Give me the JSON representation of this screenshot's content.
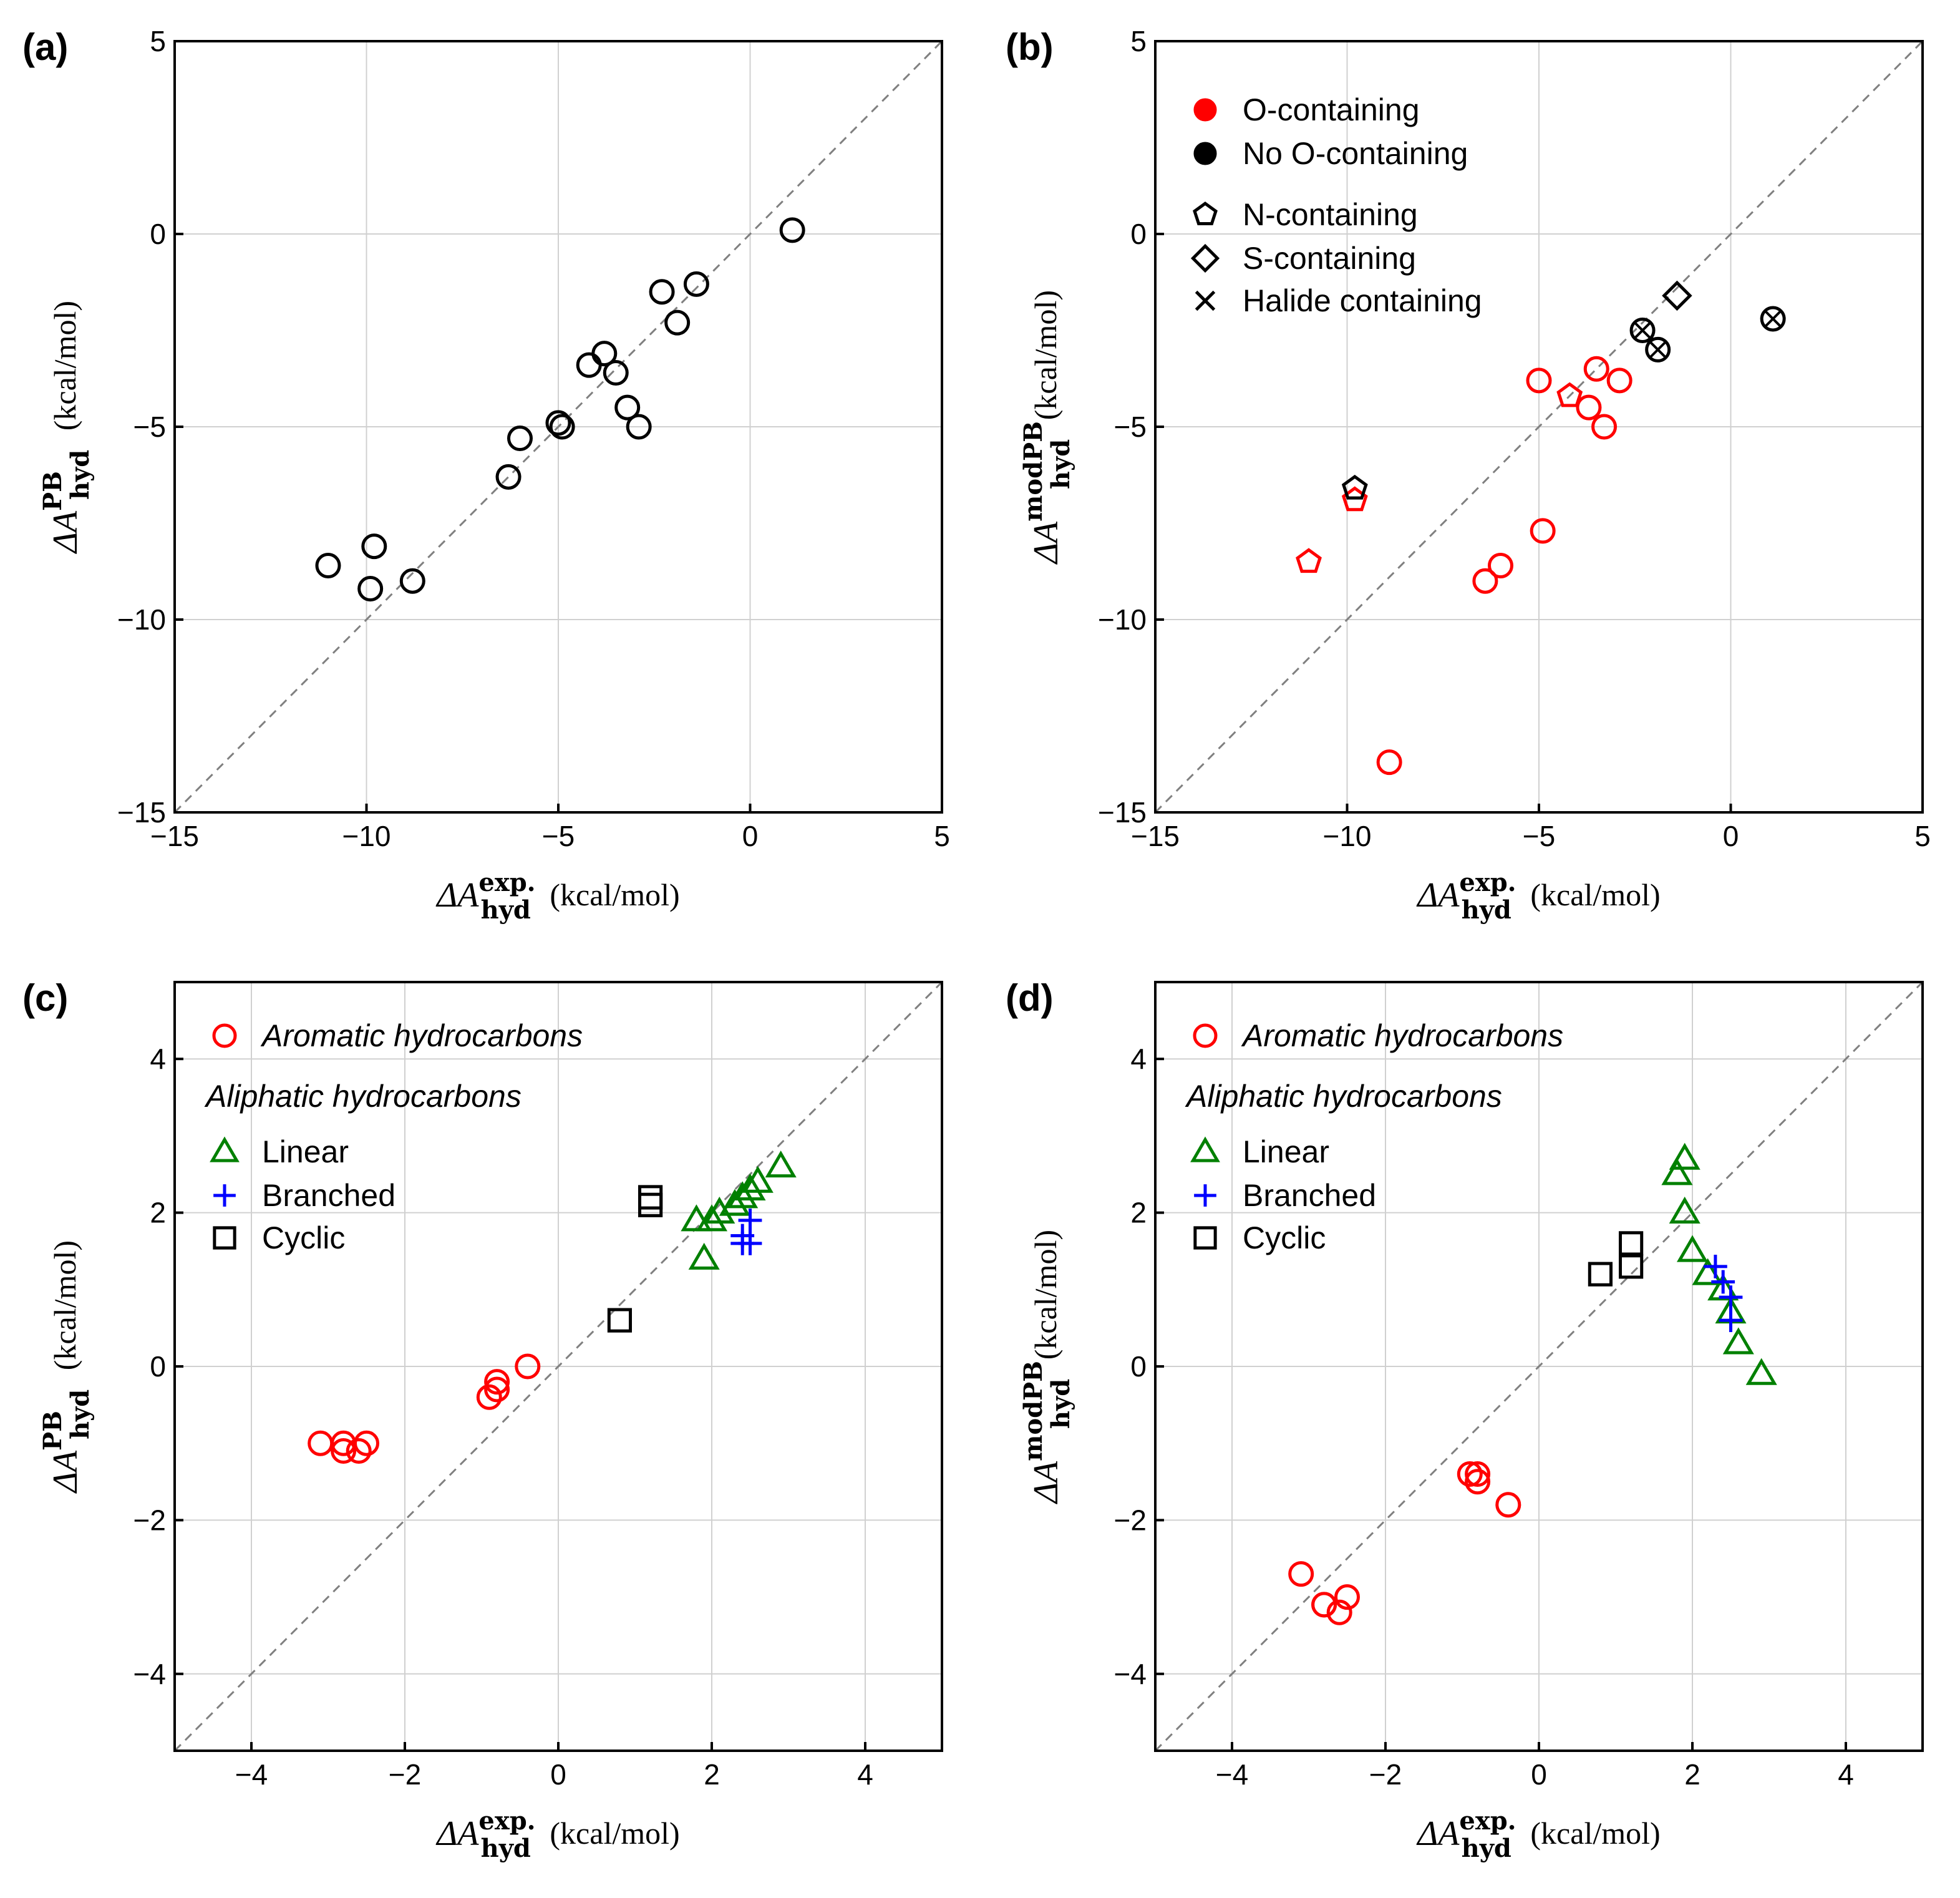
{
  "colors": {
    "red": "#ff0000",
    "black": "#000000",
    "green": "#008000",
    "blue": "#0000ff",
    "grid": "#d0d0d0",
    "diag": "#808080"
  },
  "chart_data": [
    {
      "id": "a",
      "type": "scatter",
      "panel_label": "(a)",
      "xlabel": {
        "sym": "ΔA",
        "sup": "exp.",
        "sub": "hyd",
        "unit": "(kcal/mol)"
      },
      "ylabel": {
        "sym": "ΔA",
        "sup": "PB",
        "sub": "hyd",
        "unit": "(kcal/mol)"
      },
      "xlim": [
        -15,
        5
      ],
      "ylim": [
        -15,
        5
      ],
      "xticks": [
        -15,
        -10,
        -5,
        0,
        5
      ],
      "yticks": [
        -15,
        -10,
        -5,
        0,
        5
      ],
      "grid": true,
      "diagonal": true,
      "legend": [],
      "series": [
        {
          "name": "all",
          "marker": "circle",
          "color": "#000000",
          "points": [
            [
              1.1,
              0.1
            ],
            [
              -1.4,
              -1.3
            ],
            [
              -2.3,
              -1.5
            ],
            [
              -1.9,
              -2.3
            ],
            [
              -3.8,
              -3.1
            ],
            [
              -4.2,
              -3.4
            ],
            [
              -3.5,
              -3.6
            ],
            [
              -3.2,
              -4.5
            ],
            [
              -2.9,
              -5.0
            ],
            [
              -5.0,
              -4.9
            ],
            [
              -4.9,
              -5.0
            ],
            [
              -6.0,
              -5.3
            ],
            [
              -6.3,
              -6.3
            ],
            [
              -9.8,
              -8.1
            ],
            [
              -11.0,
              -8.6
            ],
            [
              -9.9,
              -9.2
            ],
            [
              -8.8,
              -9.0
            ]
          ]
        }
      ]
    },
    {
      "id": "b",
      "type": "scatter",
      "panel_label": "(b)",
      "xlabel": {
        "sym": "ΔA",
        "sup": "exp.",
        "sub": "hyd",
        "unit": "(kcal/mol)"
      },
      "ylabel": {
        "sym": "ΔA",
        "sup": "modPB",
        "sub": "hyd",
        "unit": "(kcal/mol)"
      },
      "xlim": [
        -15,
        5
      ],
      "ylim": [
        -15,
        5
      ],
      "xticks": [
        -15,
        -10,
        -5,
        0,
        5
      ],
      "yticks": [
        -15,
        -10,
        -5,
        0,
        5
      ],
      "grid": true,
      "diagonal": true,
      "legend": [
        {
          "label": "O-containing",
          "marker": "filled-circle",
          "color": "#ff0000"
        },
        {
          "label": "No O-containing",
          "marker": "filled-circle",
          "color": "#000000"
        },
        {
          "label": "N-containing",
          "marker": "pentagon",
          "color": "#000000"
        },
        {
          "label": "S-containing",
          "marker": "diamond",
          "color": "#000000"
        },
        {
          "label": "Halide containing",
          "marker": "cross",
          "color": "#000000"
        }
      ],
      "series": [
        {
          "name": "O-containing",
          "marker": "circle",
          "color": "#ff0000",
          "points": [
            [
              -5.0,
              -3.8
            ],
            [
              -3.5,
              -3.5
            ],
            [
              -2.9,
              -3.8
            ],
            [
              -3.7,
              -4.5
            ],
            [
              -3.3,
              -5.0
            ],
            [
              -4.9,
              -7.7
            ],
            [
              -6.0,
              -8.6
            ],
            [
              -6.4,
              -9.0
            ],
            [
              -8.9,
              -13.7
            ]
          ]
        },
        {
          "name": "O + N-containing",
          "marker": "pentagon",
          "color": "#ff0000",
          "points": [
            [
              -4.2,
              -4.2
            ],
            [
              -9.8,
              -6.9
            ],
            [
              -11.0,
              -8.5
            ]
          ]
        },
        {
          "name": "N-containing",
          "marker": "pentagon",
          "color": "#000000",
          "points": [
            [
              -9.8,
              -6.6
            ]
          ]
        },
        {
          "name": "S-containing",
          "marker": "diamond",
          "color": "#000000",
          "points": [
            [
              -1.4,
              -1.6
            ]
          ]
        },
        {
          "name": "Halide containing",
          "marker": "circle-cross",
          "color": "#000000",
          "points": [
            [
              -2.3,
              -2.5
            ],
            [
              -1.9,
              -3.0
            ],
            [
              1.1,
              -2.2
            ]
          ]
        }
      ]
    },
    {
      "id": "c",
      "type": "scatter",
      "panel_label": "(c)",
      "xlabel": {
        "sym": "ΔA",
        "sup": "exp.",
        "sub": "hyd",
        "unit": "(kcal/mol)"
      },
      "ylabel": {
        "sym": "ΔA",
        "sup": "PB",
        "sub": "hyd",
        "unit": "(kcal/mol)"
      },
      "xlim": [
        -5,
        5
      ],
      "ylim": [
        -5,
        5
      ],
      "xticks": [
        -4,
        -2,
        0,
        2,
        4
      ],
      "yticks": [
        -4,
        -2,
        0,
        2,
        4
      ],
      "grid": true,
      "diagonal": true,
      "legend_title": "Aliphatic hydrocarbons",
      "legend": [
        {
          "label": "Aromatic hydrocarbons",
          "marker": "circle",
          "color": "#ff0000",
          "italic": true
        },
        {
          "label": "Linear",
          "marker": "triangle",
          "color": "#008000"
        },
        {
          "label": "Branched",
          "marker": "plus",
          "color": "#0000ff"
        },
        {
          "label": "Cyclic",
          "marker": "square",
          "color": "#000000"
        }
      ],
      "series": [
        {
          "name": "Aromatic hydrocarbons",
          "marker": "circle",
          "color": "#ff0000",
          "points": [
            [
              -3.1,
              -1.0
            ],
            [
              -2.8,
              -1.0
            ],
            [
              -2.8,
              -1.1
            ],
            [
              -2.6,
              -1.1
            ],
            [
              -2.5,
              -1.0
            ],
            [
              -0.9,
              -0.4
            ],
            [
              -0.8,
              -0.3
            ],
            [
              -0.8,
              -0.2
            ],
            [
              -0.4,
              0.0
            ]
          ]
        },
        {
          "name": "Linear",
          "marker": "triangle",
          "color": "#008000",
          "points": [
            [
              1.8,
              1.9
            ],
            [
              2.0,
              1.9
            ],
            [
              2.1,
              2.0
            ],
            [
              2.3,
              2.1
            ],
            [
              2.4,
              2.2
            ],
            [
              2.5,
              2.3
            ],
            [
              2.6,
              2.4
            ],
            [
              2.9,
              2.6
            ],
            [
              1.9,
              1.4
            ]
          ]
        },
        {
          "name": "Branched",
          "marker": "plus",
          "color": "#0000ff",
          "points": [
            [
              2.4,
              1.7
            ],
            [
              2.5,
              1.9
            ],
            [
              2.4,
              1.6
            ],
            [
              2.5,
              1.6
            ]
          ]
        },
        {
          "name": "Cyclic",
          "marker": "square",
          "color": "#000000",
          "points": [
            [
              1.2,
              2.1
            ],
            [
              1.2,
              2.2
            ],
            [
              0.8,
              0.6
            ]
          ]
        }
      ]
    },
    {
      "id": "d",
      "type": "scatter",
      "panel_label": "(d)",
      "xlabel": {
        "sym": "ΔA",
        "sup": "exp.",
        "sub": "hyd",
        "unit": "(kcal/mol)"
      },
      "ylabel": {
        "sym": "ΔA",
        "sup": "modPB",
        "sub": "hyd",
        "unit": "(kcal/mol)"
      },
      "xlim": [
        -5,
        5
      ],
      "ylim": [
        -5,
        5
      ],
      "xticks": [
        -4,
        -2,
        0,
        2,
        4
      ],
      "yticks": [
        -4,
        -2,
        0,
        2,
        4
      ],
      "grid": true,
      "diagonal": true,
      "legend_title": "Aliphatic hydrocarbons",
      "legend": [
        {
          "label": "Aromatic hydrocarbons",
          "marker": "circle",
          "color": "#ff0000",
          "italic": true
        },
        {
          "label": "Linear",
          "marker": "triangle",
          "color": "#008000"
        },
        {
          "label": "Branched",
          "marker": "plus",
          "color": "#0000ff"
        },
        {
          "label": "Cyclic",
          "marker": "square",
          "color": "#000000"
        }
      ],
      "series": [
        {
          "name": "Aromatic hydrocarbons",
          "marker": "circle",
          "color": "#ff0000",
          "points": [
            [
              -3.1,
              -2.7
            ],
            [
              -2.8,
              -3.1
            ],
            [
              -2.6,
              -3.2
            ],
            [
              -2.5,
              -3.0
            ],
            [
              -2.8,
              -3.1
            ],
            [
              -0.9,
              -1.4
            ],
            [
              -0.8,
              -1.4
            ],
            [
              -0.8,
              -1.5
            ],
            [
              -0.4,
              -1.8
            ]
          ]
        },
        {
          "name": "Linear",
          "marker": "triangle",
          "color": "#008000",
          "points": [
            [
              1.9,
              2.7
            ],
            [
              1.8,
              2.5
            ],
            [
              1.9,
              2.0
            ],
            [
              2.0,
              1.5
            ],
            [
              2.2,
              1.2
            ],
            [
              2.4,
              1.0
            ],
            [
              2.5,
              0.7
            ],
            [
              2.6,
              0.3
            ],
            [
              2.9,
              -0.1
            ]
          ]
        },
        {
          "name": "Branched",
          "marker": "plus",
          "color": "#0000ff",
          "points": [
            [
              2.3,
              1.3
            ],
            [
              2.4,
              1.1
            ],
            [
              2.5,
              0.9
            ],
            [
              2.5,
              0.6
            ]
          ]
        },
        {
          "name": "Cyclic",
          "marker": "square",
          "color": "#000000",
          "points": [
            [
              1.2,
              1.6
            ],
            [
              1.2,
              1.3
            ],
            [
              0.8,
              1.2
            ]
          ]
        }
      ]
    }
  ]
}
